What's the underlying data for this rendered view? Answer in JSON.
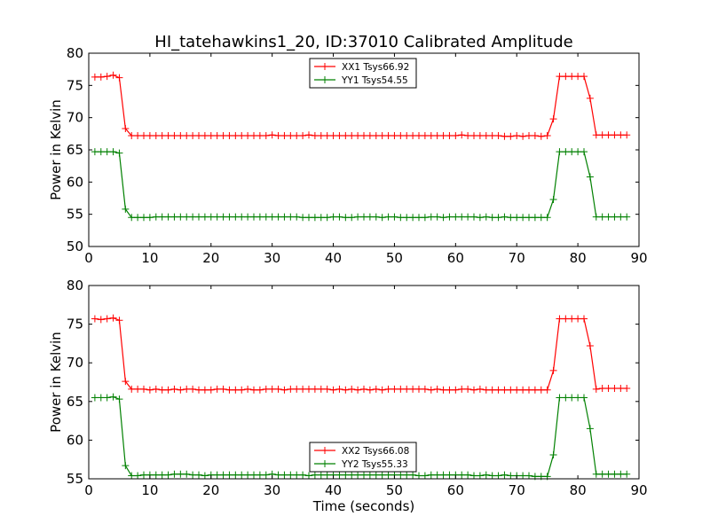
{
  "figure": {
    "title": "HI_tatehawkins1_20, ID:37010 Calibrated Amplitude"
  },
  "chart_data": [
    {
      "type": "line",
      "title": "HI_tatehawkins1_20, ID:37010 Calibrated Amplitude",
      "xlabel": "",
      "ylabel": "Power in Kelvin",
      "xlim": [
        0,
        90
      ],
      "ylim": [
        50,
        80
      ],
      "xticks": [
        0,
        10,
        20,
        30,
        40,
        50,
        60,
        70,
        80,
        90
      ],
      "yticks": [
        50,
        55,
        60,
        65,
        70,
        75,
        80
      ],
      "grid": false,
      "legend_position": "top-center",
      "series": [
        {
          "name": "XX1 Tsys66.92",
          "color": "#ff0000",
          "marker": "+",
          "x": [
            1,
            2,
            3,
            4,
            5,
            6,
            7,
            8,
            9,
            10,
            11,
            12,
            13,
            14,
            15,
            16,
            17,
            18,
            19,
            20,
            21,
            22,
            23,
            24,
            25,
            26,
            27,
            28,
            29,
            30,
            31,
            32,
            33,
            34,
            35,
            36,
            37,
            38,
            39,
            40,
            41,
            42,
            43,
            44,
            45,
            46,
            47,
            48,
            49,
            50,
            51,
            52,
            53,
            54,
            55,
            56,
            57,
            58,
            59,
            60,
            61,
            62,
            63,
            64,
            65,
            66,
            67,
            68,
            69,
            70,
            71,
            72,
            73,
            74,
            75,
            76,
            77,
            78,
            79,
            80,
            81,
            82,
            83,
            84,
            85,
            86,
            87,
            88
          ],
          "values": [
            76.3,
            76.3,
            76.4,
            76.6,
            76.2,
            68.3,
            67.2,
            67.2,
            67.2,
            67.2,
            67.2,
            67.2,
            67.2,
            67.2,
            67.2,
            67.2,
            67.2,
            67.2,
            67.2,
            67.2,
            67.2,
            67.2,
            67.2,
            67.2,
            67.2,
            67.2,
            67.2,
            67.2,
            67.2,
            67.3,
            67.2,
            67.2,
            67.2,
            67.2,
            67.2,
            67.3,
            67.2,
            67.2,
            67.2,
            67.2,
            67.2,
            67.2,
            67.2,
            67.2,
            67.2,
            67.2,
            67.2,
            67.2,
            67.2,
            67.2,
            67.2,
            67.2,
            67.2,
            67.2,
            67.2,
            67.2,
            67.2,
            67.2,
            67.2,
            67.2,
            67.3,
            67.2,
            67.2,
            67.2,
            67.2,
            67.2,
            67.2,
            67.1,
            67.1,
            67.2,
            67.1,
            67.2,
            67.2,
            67.1,
            67.2,
            69.8,
            76.4,
            76.4,
            76.4,
            76.4,
            76.4,
            73.0,
            67.3,
            67.3,
            67.3,
            67.3,
            67.3,
            67.3
          ]
        },
        {
          "name": "YY1 Tsys54.55",
          "color": "#008000",
          "marker": "+",
          "x": [
            1,
            2,
            3,
            4,
            5,
            6,
            7,
            8,
            9,
            10,
            11,
            12,
            13,
            14,
            15,
            16,
            17,
            18,
            19,
            20,
            21,
            22,
            23,
            24,
            25,
            26,
            27,
            28,
            29,
            30,
            31,
            32,
            33,
            34,
            35,
            36,
            37,
            38,
            39,
            40,
            41,
            42,
            43,
            44,
            45,
            46,
            47,
            48,
            49,
            50,
            51,
            52,
            53,
            54,
            55,
            56,
            57,
            58,
            59,
            60,
            61,
            62,
            63,
            64,
            65,
            66,
            67,
            68,
            69,
            70,
            71,
            72,
            73,
            74,
            75,
            76,
            77,
            78,
            79,
            80,
            81,
            82,
            83,
            84,
            85,
            86,
            87,
            88
          ],
          "values": [
            64.7,
            64.7,
            64.7,
            64.7,
            64.5,
            55.8,
            54.5,
            54.5,
            54.5,
            54.5,
            54.6,
            54.6,
            54.6,
            54.6,
            54.6,
            54.6,
            54.6,
            54.6,
            54.6,
            54.6,
            54.6,
            54.6,
            54.6,
            54.6,
            54.6,
            54.6,
            54.6,
            54.6,
            54.6,
            54.6,
            54.6,
            54.6,
            54.6,
            54.6,
            54.5,
            54.5,
            54.5,
            54.5,
            54.5,
            54.6,
            54.6,
            54.5,
            54.5,
            54.6,
            54.6,
            54.6,
            54.6,
            54.5,
            54.6,
            54.6,
            54.5,
            54.5,
            54.5,
            54.5,
            54.5,
            54.6,
            54.6,
            54.5,
            54.6,
            54.6,
            54.6,
            54.6,
            54.6,
            54.5,
            54.6,
            54.5,
            54.5,
            54.6,
            54.5,
            54.5,
            54.5,
            54.5,
            54.5,
            54.5,
            54.5,
            57.3,
            64.7,
            64.7,
            64.7,
            64.7,
            64.7,
            60.8,
            54.6,
            54.6,
            54.6,
            54.6,
            54.6,
            54.6
          ]
        }
      ]
    },
    {
      "type": "line",
      "title": "",
      "xlabel": "Time (seconds)",
      "ylabel": "Power in Kelvin",
      "xlim": [
        0,
        90
      ],
      "ylim": [
        55,
        80
      ],
      "xticks": [
        0,
        10,
        20,
        30,
        40,
        50,
        60,
        70,
        80,
        90
      ],
      "yticks": [
        55,
        60,
        65,
        70,
        75,
        80
      ],
      "grid": false,
      "legend_position": "bottom-center",
      "series": [
        {
          "name": "XX2 Tsys66.08",
          "color": "#ff0000",
          "marker": "+",
          "x": [
            1,
            2,
            3,
            4,
            5,
            6,
            7,
            8,
            9,
            10,
            11,
            12,
            13,
            14,
            15,
            16,
            17,
            18,
            19,
            20,
            21,
            22,
            23,
            24,
            25,
            26,
            27,
            28,
            29,
            30,
            31,
            32,
            33,
            34,
            35,
            36,
            37,
            38,
            39,
            40,
            41,
            42,
            43,
            44,
            45,
            46,
            47,
            48,
            49,
            50,
            51,
            52,
            53,
            54,
            55,
            56,
            57,
            58,
            59,
            60,
            61,
            62,
            63,
            64,
            65,
            66,
            67,
            68,
            69,
            70,
            71,
            72,
            73,
            74,
            75,
            76,
            77,
            78,
            79,
            80,
            81,
            82,
            83,
            84,
            85,
            86,
            87,
            88
          ],
          "values": [
            75.7,
            75.6,
            75.7,
            75.8,
            75.5,
            67.6,
            66.6,
            66.6,
            66.6,
            66.5,
            66.6,
            66.5,
            66.5,
            66.6,
            66.5,
            66.6,
            66.6,
            66.5,
            66.5,
            66.5,
            66.6,
            66.6,
            66.5,
            66.5,
            66.5,
            66.6,
            66.5,
            66.5,
            66.6,
            66.6,
            66.6,
            66.5,
            66.6,
            66.6,
            66.6,
            66.6,
            66.6,
            66.6,
            66.6,
            66.5,
            66.6,
            66.5,
            66.6,
            66.5,
            66.6,
            66.5,
            66.6,
            66.5,
            66.6,
            66.6,
            66.6,
            66.6,
            66.6,
            66.6,
            66.6,
            66.5,
            66.6,
            66.5,
            66.5,
            66.5,
            66.6,
            66.6,
            66.5,
            66.6,
            66.5,
            66.5,
            66.5,
            66.5,
            66.5,
            66.5,
            66.5,
            66.5,
            66.5,
            66.5,
            66.5,
            69.0,
            75.7,
            75.7,
            75.7,
            75.7,
            75.7,
            72.2,
            66.6,
            66.7,
            66.7,
            66.7,
            66.7,
            66.7
          ]
        },
        {
          "name": "YY2 Tsys55.33",
          "color": "#008000",
          "marker": "+",
          "x": [
            1,
            2,
            3,
            4,
            5,
            6,
            7,
            8,
            9,
            10,
            11,
            12,
            13,
            14,
            15,
            16,
            17,
            18,
            19,
            20,
            21,
            22,
            23,
            24,
            25,
            26,
            27,
            28,
            29,
            30,
            31,
            32,
            33,
            34,
            35,
            36,
            37,
            38,
            39,
            40,
            41,
            42,
            43,
            44,
            45,
            46,
            47,
            48,
            49,
            50,
            51,
            52,
            53,
            54,
            55,
            56,
            57,
            58,
            59,
            60,
            61,
            62,
            63,
            64,
            65,
            66,
            67,
            68,
            69,
            70,
            71,
            72,
            73,
            74,
            75,
            76,
            77,
            78,
            79,
            80,
            81,
            82,
            83,
            84,
            85,
            86,
            87,
            88
          ],
          "values": [
            65.5,
            65.5,
            65.5,
            65.6,
            65.3,
            56.7,
            55.4,
            55.4,
            55.5,
            55.5,
            55.5,
            55.5,
            55.5,
            55.6,
            55.6,
            55.6,
            55.5,
            55.5,
            55.4,
            55.5,
            55.5,
            55.5,
            55.5,
            55.5,
            55.5,
            55.5,
            55.5,
            55.5,
            55.5,
            55.6,
            55.5,
            55.5,
            55.5,
            55.5,
            55.5,
            55.4,
            55.5,
            55.5,
            55.5,
            55.5,
            55.5,
            55.5,
            55.5,
            55.5,
            55.5,
            55.5,
            55.5,
            55.5,
            55.5,
            55.5,
            55.5,
            55.5,
            55.5,
            55.4,
            55.4,
            55.5,
            55.5,
            55.5,
            55.5,
            55.5,
            55.5,
            55.5,
            55.4,
            55.4,
            55.5,
            55.4,
            55.4,
            55.5,
            55.4,
            55.4,
            55.4,
            55.4,
            55.3,
            55.3,
            55.3,
            58.1,
            65.5,
            65.5,
            65.5,
            65.5,
            65.5,
            61.5,
            55.6,
            55.6,
            55.6,
            55.6,
            55.6,
            55.6
          ]
        }
      ]
    }
  ]
}
